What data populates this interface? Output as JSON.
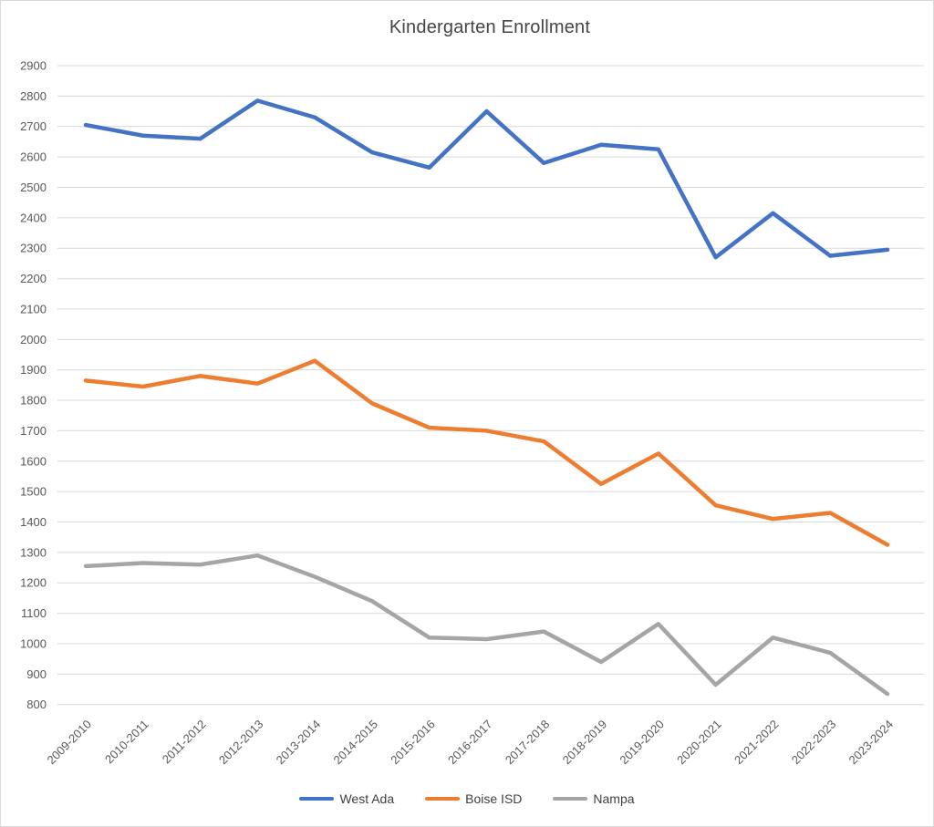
{
  "chart_data": {
    "type": "line",
    "title": "Kindergarten Enrollment",
    "xlabel": "",
    "ylabel": "",
    "grid": true,
    "legend_position": "bottom",
    "ylim": [
      800,
      2900
    ],
    "yticks": [
      800,
      900,
      1000,
      1100,
      1200,
      1300,
      1400,
      1500,
      1600,
      1700,
      1800,
      1900,
      2000,
      2100,
      2200,
      2300,
      2400,
      2500,
      2600,
      2700,
      2800,
      2900
    ],
    "categories": [
      "2009-2010",
      "2010-2011",
      "2011-2012",
      "2012-2013",
      "2013-2014",
      "2014-2015",
      "2015-2016",
      "2016-2017",
      "2017-2018",
      "2018-2019",
      "2019-2020",
      "2020-2021",
      "2021-2022",
      "2022-2023",
      "2023-2024"
    ],
    "series": [
      {
        "name": "West Ada",
        "color": "#4472C4",
        "values": [
          2705,
          2670,
          2660,
          2785,
          2730,
          2615,
          2565,
          2750,
          2580,
          2640,
          2625,
          2270,
          2415,
          2275,
          2295
        ]
      },
      {
        "name": "Boise ISD",
        "color": "#ED7D31",
        "values": [
          1865,
          1845,
          1880,
          1855,
          1930,
          1790,
          1710,
          1700,
          1665,
          1525,
          1625,
          1455,
          1410,
          1430,
          1325
        ]
      },
      {
        "name": "Nampa",
        "color": "#A5A5A5",
        "values": [
          1255,
          1265,
          1260,
          1290,
          1220,
          1140,
          1020,
          1015,
          1040,
          940,
          1065,
          865,
          1020,
          970,
          835
        ]
      }
    ]
  },
  "colors": {
    "background": "#FFFFFF",
    "border": "#D9D9D9",
    "gridline": "#D9D9D9",
    "axis_text": "#595959",
    "title_text": "#454545"
  }
}
